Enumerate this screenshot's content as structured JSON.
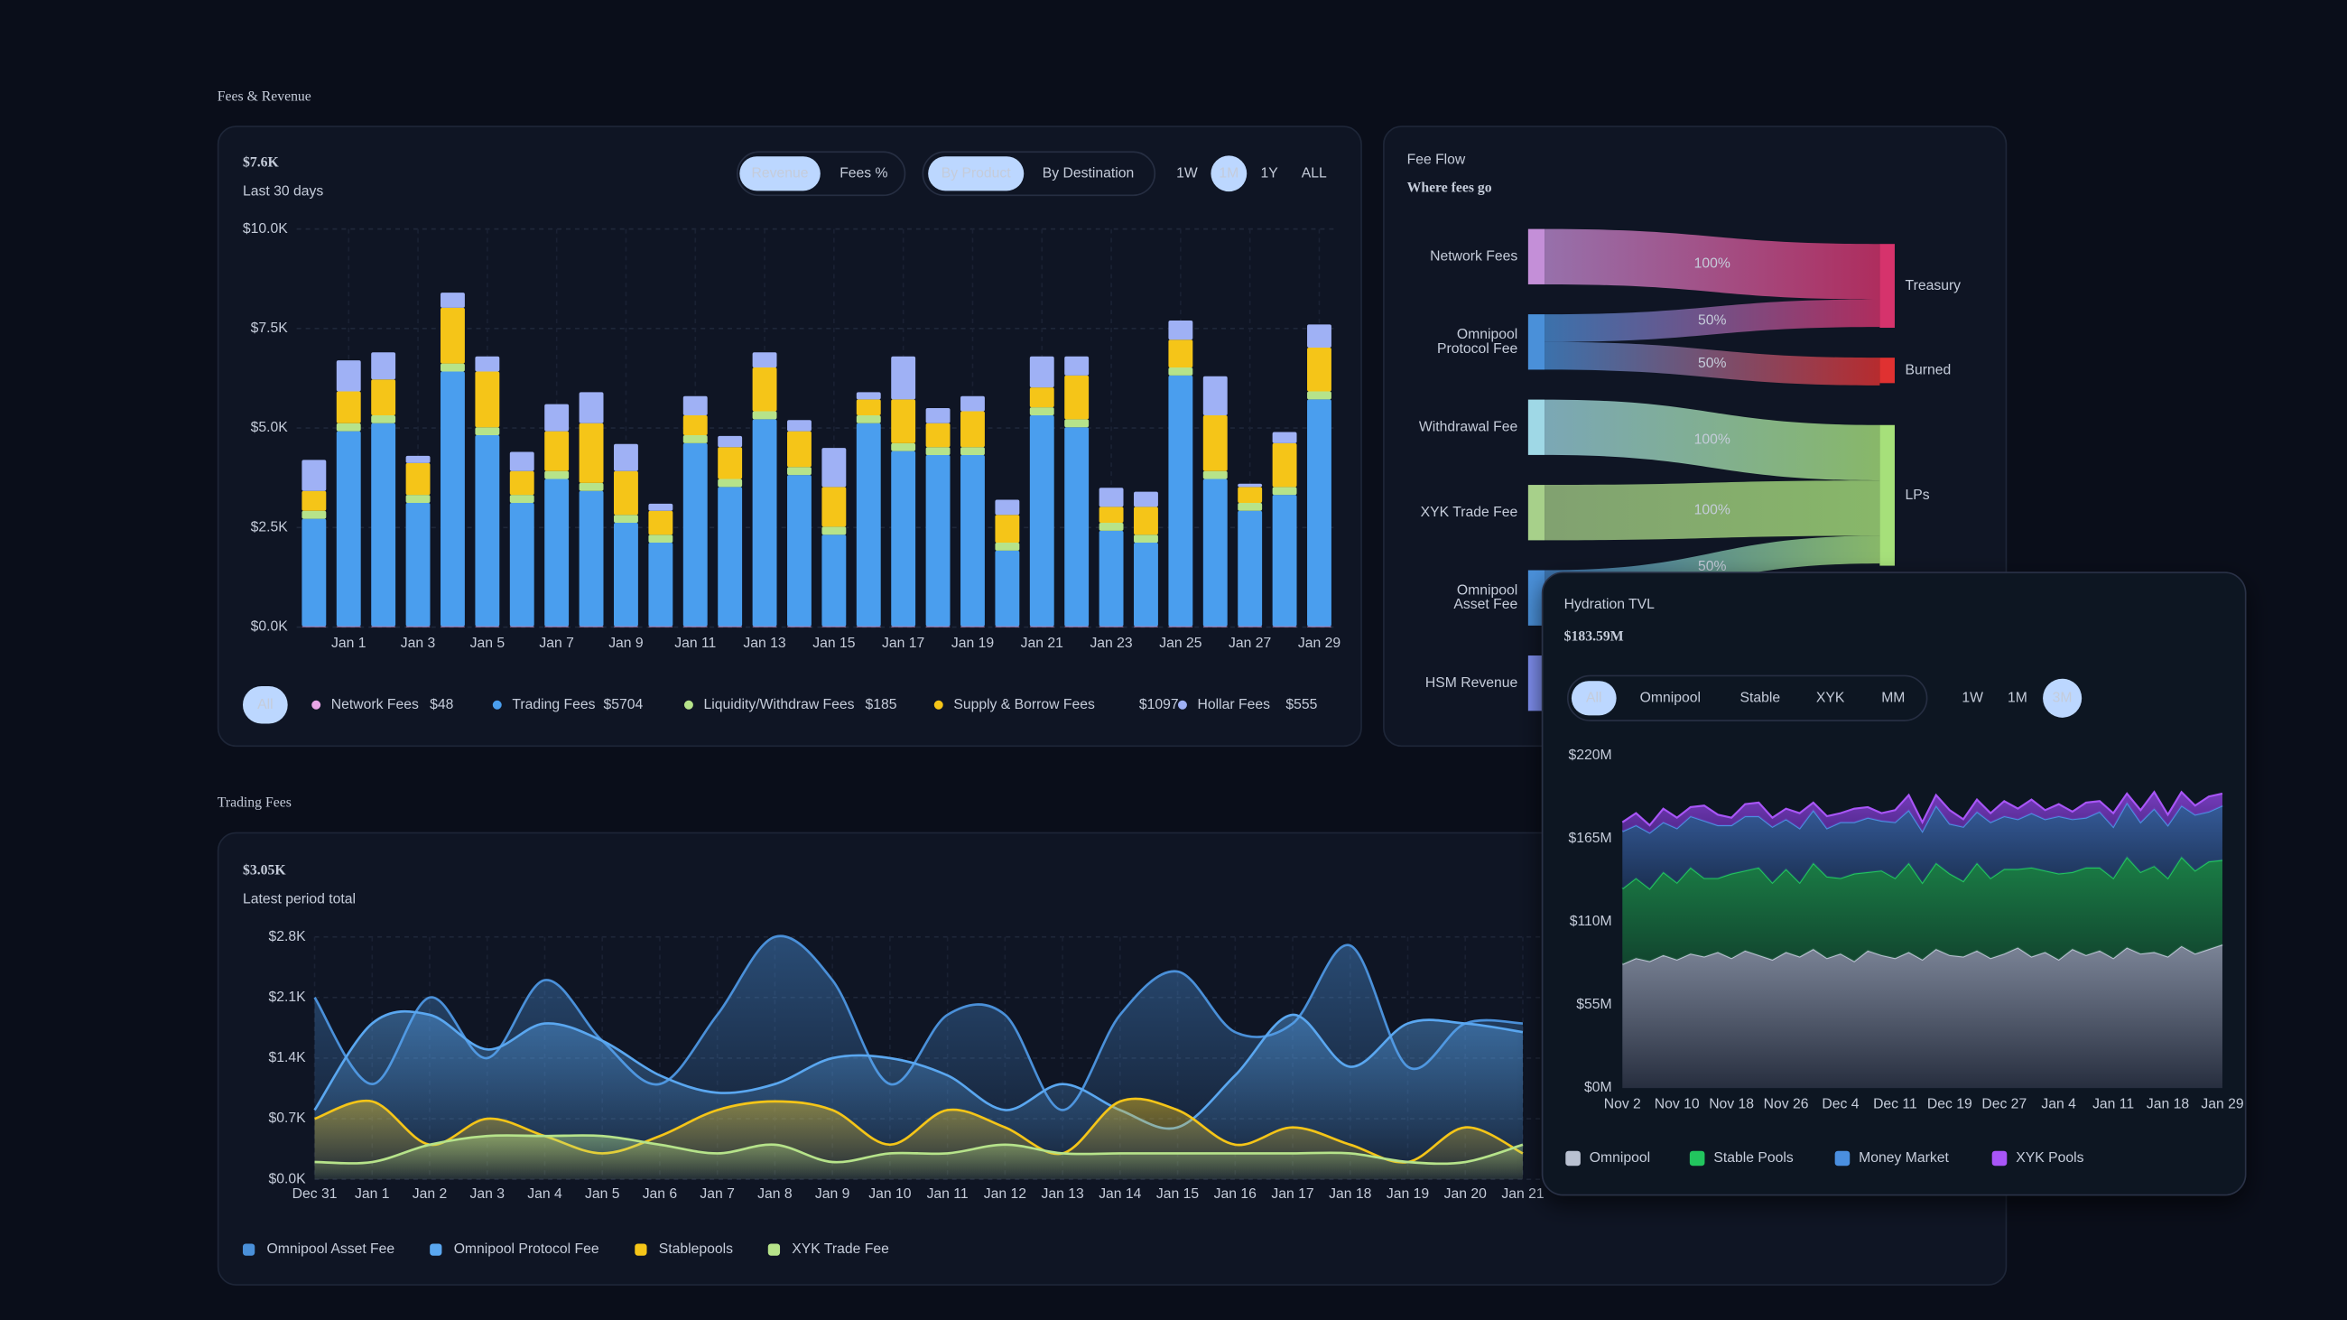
{
  "sections": [
    "Fees & Revenue",
    "Trading Fees"
  ],
  "chart_data": [
    {
      "type": "bar",
      "stacked": true,
      "headline": "$7.6K",
      "subtitle": "Last 30 days",
      "toggle_groups": [
        {
          "options": [
            "Revenue",
            "Fees %"
          ],
          "selected": "Revenue"
        },
        {
          "options": [
            "By Product",
            "By Destination"
          ],
          "selected": "By Product"
        }
      ],
      "ranges": {
        "options": [
          "1W",
          "1M",
          "1Y",
          "ALL"
        ],
        "selected": "1M"
      },
      "legend_filter": "All",
      "categories": [
        null,
        "Jan 1",
        null,
        "Jan 3",
        null,
        "Jan 5",
        null,
        "Jan 7",
        null,
        "Jan 9",
        null,
        "Jan 11",
        null,
        "Jan 13",
        null,
        "Jan 15",
        null,
        "Jan 17",
        null,
        "Jan 19",
        null,
        "Jan 21",
        null,
        "Jan 23",
        null,
        "Jan 25",
        null,
        "Jan 27",
        null,
        "Jan 29"
      ],
      "series": [
        {
          "name": "Network Fees",
          "total_label": "$48",
          "color": "#e8a5e6",
          "values": [
            20,
            20,
            20,
            20,
            20,
            20,
            20,
            20,
            20,
            20,
            20,
            20,
            20,
            20,
            20,
            20,
            20,
            20,
            20,
            20,
            20,
            20,
            20,
            20,
            20,
            20,
            20,
            20,
            20,
            20
          ]
        },
        {
          "name": "Trading Fees",
          "total_label": "$5704",
          "color": "#4a9eee",
          "values": [
            2700,
            4900,
            5100,
            3100,
            6400,
            4800,
            3100,
            3700,
            3400,
            2600,
            2100,
            4600,
            3500,
            5200,
            3800,
            2300,
            5100,
            4400,
            4300,
            4300,
            1900,
            5300,
            5000,
            2400,
            2100,
            6300,
            3700,
            2900,
            3300,
            5700
          ]
        },
        {
          "name": "Liquidity/Withdraw Fees",
          "total_label": "$185",
          "color": "#b6e38a",
          "values": [
            200,
            200,
            200,
            200,
            200,
            200,
            200,
            200,
            200,
            200,
            200,
            200,
            200,
            200,
            200,
            200,
            200,
            200,
            200,
            200,
            200,
            200,
            200,
            200,
            200,
            200,
            200,
            200,
            200,
            200
          ]
        },
        {
          "name": "Supply & Borrow Fees",
          "total_label": "$1097",
          "color": "#f5c518",
          "values": [
            500,
            800,
            900,
            800,
            1400,
            1400,
            600,
            1000,
            1500,
            1100,
            600,
            500,
            800,
            1100,
            900,
            1000,
            400,
            1100,
            600,
            900,
            700,
            500,
            1100,
            400,
            700,
            700,
            1400,
            400,
            1100,
            1100
          ]
        },
        {
          "name": "Hollar Fees",
          "total_label": "$555",
          "color": "#9fb1f5",
          "values": [
            780,
            780,
            680,
            180,
            380,
            380,
            480,
            680,
            780,
            680,
            180,
            480,
            280,
            380,
            280,
            980,
            180,
            1080,
            380,
            380,
            380,
            780,
            480,
            480,
            380,
            480,
            980,
            80,
            280,
            580
          ]
        }
      ],
      "ylim": [
        0,
        10000
      ],
      "yticks": [
        {
          "value": 0,
          "label": "$0.0K"
        },
        {
          "value": 2500,
          "label": "$2.5K"
        },
        {
          "value": 5000,
          "label": "$5.0K"
        },
        {
          "value": 7500,
          "label": "$7.5K"
        },
        {
          "value": 10000,
          "label": "$10.0K"
        }
      ],
      "grid": true
    },
    {
      "type": "sankey",
      "label": "Fee Flow",
      "title": "Where fees go",
      "sources": [
        {
          "label": [
            "Network Fees"
          ],
          "color": "#c48fd8"
        },
        {
          "label": [
            "Omnipool",
            "Protocol Fee"
          ],
          "color": "#4a90d9"
        },
        {
          "label": [
            "Withdrawal Fee"
          ],
          "color": "#9fd8e6"
        },
        {
          "label": [
            "XYK Trade Fee"
          ],
          "color": "#a7d08a"
        },
        {
          "label": [
            "Omnipool",
            "Asset Fee"
          ],
          "color": "#4a90d9"
        },
        {
          "label": [
            "HSM Revenue"
          ],
          "color": "#7f8ff0"
        }
      ],
      "targets": [
        {
          "label": "Treasury",
          "color": "#d6336c"
        },
        {
          "label": "Burned",
          "color": "#e03131"
        },
        {
          "label": "LPs",
          "color": "#a6e07a"
        }
      ],
      "links": {
        "source": [
          0,
          1,
          1,
          2,
          3,
          4
        ],
        "target": [
          0,
          0,
          1,
          2,
          2,
          2
        ],
        "values": [
          100,
          50,
          50,
          100,
          100,
          50
        ],
        "value_labels": [
          "100%",
          "50%",
          "50%",
          "100%",
          "100%",
          "50%"
        ]
      }
    },
    {
      "type": "area",
      "headline": "$3.05K",
      "subtitle": "Latest period total",
      "categories": [
        "Dec 31",
        "Jan 1",
        "Jan 2",
        "Jan 3",
        "Jan 4",
        "Jan 5",
        "Jan 6",
        "Jan 7",
        "Jan 8",
        "Jan 9",
        "Jan 10",
        "Jan 11",
        "Jan 12",
        "Jan 13",
        "Jan 14",
        "Jan 15",
        "Jan 16",
        "Jan 17",
        "Jan 18",
        "Jan 19",
        "Jan 20",
        "Jan 21"
      ],
      "series": [
        {
          "name": "Omnipool Asset Fee",
          "color": "#4a90d9",
          "values": [
            2100,
            1100,
            2100,
            1400,
            2300,
            1600,
            1100,
            1900,
            2800,
            2300,
            1100,
            1900,
            1900,
            800,
            1900,
            2400,
            1700,
            1800,
            2700,
            1300,
            1800,
            1800
          ]
        },
        {
          "name": "Omnipool Protocol Fee",
          "color": "#5aa7f0",
          "values": [
            800,
            1800,
            1900,
            1500,
            1800,
            1600,
            1200,
            1000,
            1100,
            1400,
            1400,
            1200,
            800,
            1100,
            800,
            600,
            1200,
            1900,
            1300,
            1800,
            1800,
            1700
          ]
        },
        {
          "name": "Stablepools",
          "color": "#f5c518",
          "values": [
            700,
            900,
            400,
            700,
            500,
            300,
            500,
            800,
            900,
            800,
            400,
            800,
            600,
            300,
            900,
            800,
            400,
            600,
            400,
            200,
            600,
            300
          ]
        },
        {
          "name": "XYK Trade Fee",
          "color": "#b6e38a",
          "values": [
            200,
            200,
            400,
            500,
            500,
            500,
            400,
            300,
            400,
            200,
            300,
            300,
            400,
            300,
            300,
            300,
            300,
            300,
            300,
            200,
            200,
            400
          ]
        }
      ],
      "ylim": [
        0,
        2800
      ],
      "yticks": [
        {
          "value": 0,
          "label": "$0.0K"
        },
        {
          "value": 700,
          "label": "$0.7K"
        },
        {
          "value": 1400,
          "label": "$1.4K"
        },
        {
          "value": 2100,
          "label": "$2.1K"
        },
        {
          "value": 2800,
          "label": "$2.8K"
        }
      ],
      "grid": true
    },
    {
      "type": "stacked_area",
      "title": "Hydration TVL",
      "headline": "$183.59M",
      "filters": {
        "options": [
          "All",
          "Omnipool",
          "Stable",
          "XYK",
          "MM"
        ],
        "selected": "All"
      },
      "ranges": {
        "options": [
          "1W",
          "1M",
          "3M"
        ],
        "selected": "3M"
      },
      "categories": [
        "Nov 2",
        null,
        null,
        null,
        "Nov 10",
        null,
        null,
        null,
        "Nov 18",
        null,
        null,
        null,
        "Nov 26",
        null,
        null,
        null,
        "Dec 4",
        null,
        null,
        null,
        "Dec 11",
        null,
        null,
        null,
        "Dec 19",
        null,
        null,
        null,
        "Dec 27",
        null,
        null,
        null,
        "Jan 4",
        null,
        null,
        null,
        "Jan 11",
        null,
        null,
        null,
        "Jan 18",
        null,
        null,
        null,
        "Jan 29"
      ],
      "series": [
        {
          "name": "Omnipool",
          "color": "#b9c1d1",
          "values": [
            82,
            86,
            84,
            88,
            85,
            89,
            87,
            90,
            86,
            91,
            88,
            85,
            90,
            87,
            92,
            86,
            89,
            84,
            91,
            88,
            86,
            90,
            85,
            92,
            88,
            87,
            91,
            86,
            89,
            93,
            87,
            90,
            85,
            92,
            88,
            91,
            86,
            93,
            89,
            90,
            87,
            94,
            89,
            92,
            95
          ]
        },
        {
          "name": "Stable Pools",
          "color": "#22c55e",
          "values": [
            50,
            53,
            48,
            55,
            51,
            57,
            52,
            49,
            56,
            53,
            58,
            51,
            55,
            49,
            57,
            54,
            50,
            58,
            52,
            56,
            53,
            59,
            51,
            57,
            54,
            50,
            58,
            53,
            56,
            52,
            59,
            54,
            57,
            51,
            58,
            55,
            53,
            60,
            54,
            57,
            52,
            59,
            55,
            58,
            56
          ]
        },
        {
          "name": "Money Market",
          "color": "#4a8fe0",
          "values": [
            38,
            35,
            37,
            33,
            36,
            34,
            38,
            35,
            32,
            36,
            34,
            37,
            33,
            36,
            35,
            32,
            37,
            34,
            36,
            33,
            37,
            35,
            34,
            38,
            33,
            36,
            34,
            37,
            35,
            33,
            36,
            34,
            38,
            35,
            33,
            37,
            34,
            36,
            33,
            38,
            35,
            34,
            37,
            33,
            36
          ]
        },
        {
          "name": "XYK Pools",
          "color": "#a855f7",
          "values": [
            6,
            8,
            5,
            9,
            7,
            6,
            10,
            7,
            5,
            8,
            9,
            6,
            7,
            10,
            5,
            8,
            6,
            9,
            7,
            5,
            8,
            10,
            6,
            7,
            9,
            5,
            8,
            6,
            10,
            7,
            9,
            6,
            8,
            5,
            10,
            7,
            9,
            6,
            8,
            11,
            7,
            9,
            6,
            10,
            8
          ]
        }
      ],
      "ylim": [
        0,
        220
      ],
      "yticks": [
        {
          "value": 0,
          "label": "$0M"
        },
        {
          "value": 55,
          "label": "$55M"
        },
        {
          "value": 110,
          "label": "$110M"
        },
        {
          "value": 165,
          "label": "$165M"
        },
        {
          "value": 220,
          "label": "$220M"
        }
      ],
      "grid": false
    }
  ]
}
